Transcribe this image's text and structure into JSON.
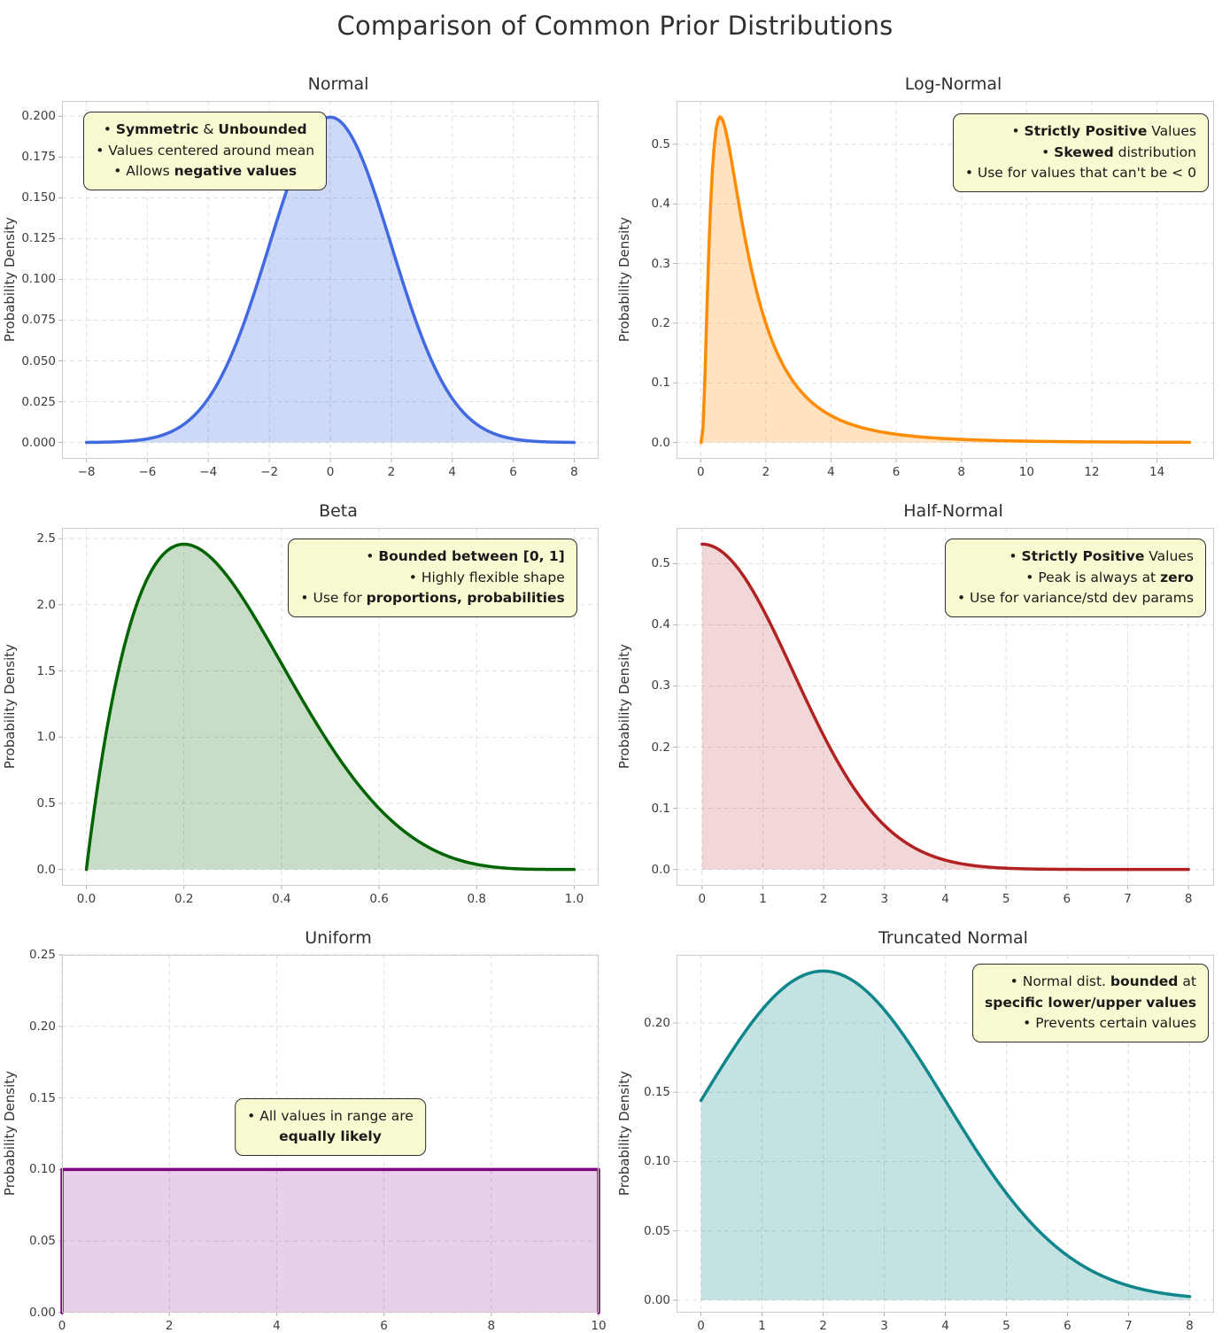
{
  "page": {
    "title": "Comparison of Common Prior Distributions"
  },
  "chart_data": [
    {
      "id": "normal",
      "type": "area",
      "title": "Normal",
      "xlabel": "",
      "ylabel": "Probability Density",
      "dist": "normal",
      "params": {
        "mean": 0,
        "sd": 2
      },
      "x_range": [
        -8,
        8
      ],
      "xlim": [
        -8.8,
        8.8
      ],
      "ylim": [
        -0.01,
        0.2094
      ],
      "grid": true,
      "xticks": {
        "values": [
          -8,
          -6,
          -4,
          -2,
          0,
          2,
          4,
          6,
          8
        ],
        "labels": [
          "−8",
          "−6",
          "−4",
          "−2",
          "0",
          "2",
          "4",
          "6",
          "8"
        ]
      },
      "yticks": {
        "values": [
          0,
          0.025,
          0.05,
          0.075,
          0.1,
          0.125,
          0.15,
          0.175,
          0.2
        ],
        "labels": [
          "0.000",
          "0.025",
          "0.050",
          "0.075",
          "0.100",
          "0.125",
          "0.150",
          "0.175",
          "0.200"
        ]
      },
      "peak": {
        "x": 0,
        "y": 0.1995
      },
      "line_color": "#4169e1",
      "fill_opacity": 0.26,
      "annotation": {
        "pos": {
          "left": "4%",
          "top": "3%"
        },
        "text_align": "center",
        "lines": [
          [
            {
              "t": "• ",
              "b": false
            },
            {
              "t": "Symmetric",
              "b": true
            },
            {
              "t": " & ",
              "b": false
            },
            {
              "t": "Unbounded",
              "b": true
            }
          ],
          [
            {
              "t": "• Values centered around mean",
              "b": false
            }
          ],
          [
            {
              "t": "• Allows ",
              "b": false
            },
            {
              "t": "negative values",
              "b": true
            }
          ]
        ]
      }
    },
    {
      "id": "lognormal",
      "type": "area",
      "title": "Log-Normal",
      "xlabel": "",
      "ylabel": "Probability Density",
      "dist": "lognormal",
      "params": {
        "mu": 0.21,
        "sigma": 0.85
      },
      "x_range": [
        0.012,
        15
      ],
      "xlim": [
        -0.74,
        15.75
      ],
      "ylim": [
        -0.0273,
        0.5725
      ],
      "grid": true,
      "xticks": {
        "values": [
          0,
          2,
          4,
          6,
          8,
          10,
          12,
          14
        ],
        "labels": [
          "0",
          "2",
          "4",
          "6",
          "8",
          "10",
          "12",
          "14"
        ]
      },
      "yticks": {
        "values": [
          0,
          0.1,
          0.2,
          0.3,
          0.4,
          0.5
        ],
        "labels": [
          "0.0",
          "0.1",
          "0.2",
          "0.3",
          "0.4",
          "0.5"
        ]
      },
      "peak": {
        "x": 0.6,
        "y": 0.545
      },
      "line_color": "#ff8c00",
      "fill_opacity": 0.25,
      "annotation": {
        "pos": {
          "right": "1%",
          "top": "3.5%"
        },
        "text_align": "right",
        "lines": [
          [
            {
              "t": "• ",
              "b": false
            },
            {
              "t": "Strictly Positive",
              "b": true
            },
            {
              "t": " Values",
              "b": false
            }
          ],
          [
            {
              "t": "• ",
              "b": false
            },
            {
              "t": "Skewed",
              "b": true
            },
            {
              "t": " distribution",
              "b": false
            }
          ],
          [
            {
              "t": "• Use for values that can't be < 0",
              "b": false
            }
          ]
        ]
      }
    },
    {
      "id": "beta",
      "type": "area",
      "title": "Beta",
      "xlabel": "",
      "ylabel": "Probability Density",
      "dist": "beta",
      "params": {
        "alpha": 2,
        "beta": 5
      },
      "x_range": [
        0,
        1
      ],
      "xlim": [
        -0.05,
        1.05
      ],
      "ylim": [
        -0.123,
        2.581
      ],
      "grid": true,
      "xticks": {
        "values": [
          0,
          0.2,
          0.4,
          0.6,
          0.8,
          1.0
        ],
        "labels": [
          "0.0",
          "0.2",
          "0.4",
          "0.6",
          "0.8",
          "1.0"
        ]
      },
      "yticks": {
        "values": [
          0,
          0.5,
          1.0,
          1.5,
          2.0,
          2.5
        ],
        "labels": [
          "0.0",
          "0.5",
          "1.0",
          "1.5",
          "2.0",
          "2.5"
        ]
      },
      "peak": {
        "x": 0.2,
        "y": 2.458
      },
      "line_color": "#006400",
      "fill_opacity": 0.22,
      "annotation": {
        "pos": {
          "right": "4%",
          "top": "3%"
        },
        "text_align": "right",
        "lines": [
          [
            {
              "t": "• ",
              "b": false
            },
            {
              "t": "Bounded between [0, 1]",
              "b": true
            }
          ],
          [
            {
              "t": "• Highly flexible shape",
              "b": false
            }
          ],
          [
            {
              "t": "• Use for ",
              "b": false
            },
            {
              "t": "proportions, probabilities",
              "b": true
            }
          ]
        ]
      }
    },
    {
      "id": "halfnormal",
      "type": "area",
      "title": "Half-Normal",
      "xlabel": "",
      "ylabel": "Probability Density",
      "dist": "halfnormal",
      "params": {
        "sd": 1.5
      },
      "x_range": [
        0,
        8
      ],
      "xlim": [
        -0.42,
        8.42
      ],
      "ylim": [
        -0.0266,
        0.5585
      ],
      "grid": true,
      "xticks": {
        "values": [
          0,
          1,
          2,
          3,
          4,
          5,
          6,
          7,
          8
        ],
        "labels": [
          "0",
          "1",
          "2",
          "3",
          "4",
          "5",
          "6",
          "7",
          "8"
        ]
      },
      "yticks": {
        "values": [
          0,
          0.1,
          0.2,
          0.3,
          0.4,
          0.5
        ],
        "labels": [
          "0.0",
          "0.1",
          "0.2",
          "0.3",
          "0.4",
          "0.5"
        ]
      },
      "peak": {
        "x": 0,
        "y": 0.532
      },
      "line_color": "#b22222",
      "fill_opacity": 0.18,
      "annotation": {
        "pos": {
          "right": "1.5%",
          "top": "3%"
        },
        "text_align": "right",
        "lines": [
          [
            {
              "t": "• ",
              "b": false
            },
            {
              "t": "Strictly Positive",
              "b": true
            },
            {
              "t": " Values",
              "b": false
            }
          ],
          [
            {
              "t": "• Peak is always at ",
              "b": false
            },
            {
              "t": "zero",
              "b": true
            }
          ],
          [
            {
              "t": "• Use for variance/std dev params",
              "b": false
            }
          ]
        ]
      }
    },
    {
      "id": "uniform",
      "type": "area",
      "title": "Uniform",
      "xlabel": "",
      "ylabel": "Probability Density",
      "dist": "uniform",
      "params": {
        "a": 0,
        "b": 10,
        "density": 0.1
      },
      "x_range": [
        0,
        10
      ],
      "xlim": [
        0,
        10
      ],
      "ylim": [
        0,
        0.25
      ],
      "grid": true,
      "xticks": {
        "values": [
          0,
          2,
          4,
          6,
          8,
          10
        ],
        "labels": [
          "0",
          "2",
          "4",
          "6",
          "8",
          "10"
        ]
      },
      "yticks": {
        "values": [
          0,
          0.05,
          0.1,
          0.15,
          0.2,
          0.25
        ],
        "labels": [
          "0.00",
          "0.05",
          "0.10",
          "0.15",
          "0.20",
          "0.25"
        ]
      },
      "peak": {
        "x": 5,
        "y": 0.1
      },
      "line_color": "#800080",
      "fill_opacity": 0.18,
      "annotation": {
        "pos": {
          "center": true,
          "top": "40%"
        },
        "text_align": "center",
        "lines": [
          [
            {
              "t": "• All values in range are",
              "b": false
            }
          ],
          [
            {
              "t": "equally likely",
              "b": true
            }
          ]
        ]
      }
    },
    {
      "id": "truncnormal",
      "type": "area",
      "title": "Truncated Normal",
      "xlabel": "",
      "ylabel": "Probability Density",
      "dist": "truncnormal",
      "params": {
        "mean": 2,
        "sd": 2,
        "lower": 0,
        "upper": 8
      },
      "x_range": [
        0,
        8
      ],
      "xlim": [
        -0.4,
        8.4
      ],
      "ylim": [
        -0.009,
        0.2492
      ],
      "grid": true,
      "xticks": {
        "values": [
          0,
          1,
          2,
          3,
          4,
          5,
          6,
          7,
          8
        ],
        "labels": [
          "0",
          "1",
          "2",
          "3",
          "4",
          "5",
          "6",
          "7",
          "8"
        ]
      },
      "yticks": {
        "values": [
          0,
          0.05,
          0.1,
          0.15,
          0.2
        ],
        "labels": [
          "0.00",
          "0.05",
          "0.10",
          "0.15",
          "0.20"
        ]
      },
      "peak": {
        "x": 2,
        "y": 0.2375
      },
      "line_color": "#0e868b",
      "fill_opacity": 0.24,
      "annotation": {
        "pos": {
          "right": "1%",
          "top": "2.5%"
        },
        "text_align": "right",
        "lines": [
          [
            {
              "t": "• Normal dist. ",
              "b": false
            },
            {
              "t": "bounded",
              "b": true
            },
            {
              "t": " at",
              "b": false
            }
          ],
          [
            {
              "t": "specific lower/upper values",
              "b": true
            }
          ],
          [
            {
              "t": "• Prevents certain values",
              "b": false
            }
          ]
        ]
      }
    }
  ]
}
